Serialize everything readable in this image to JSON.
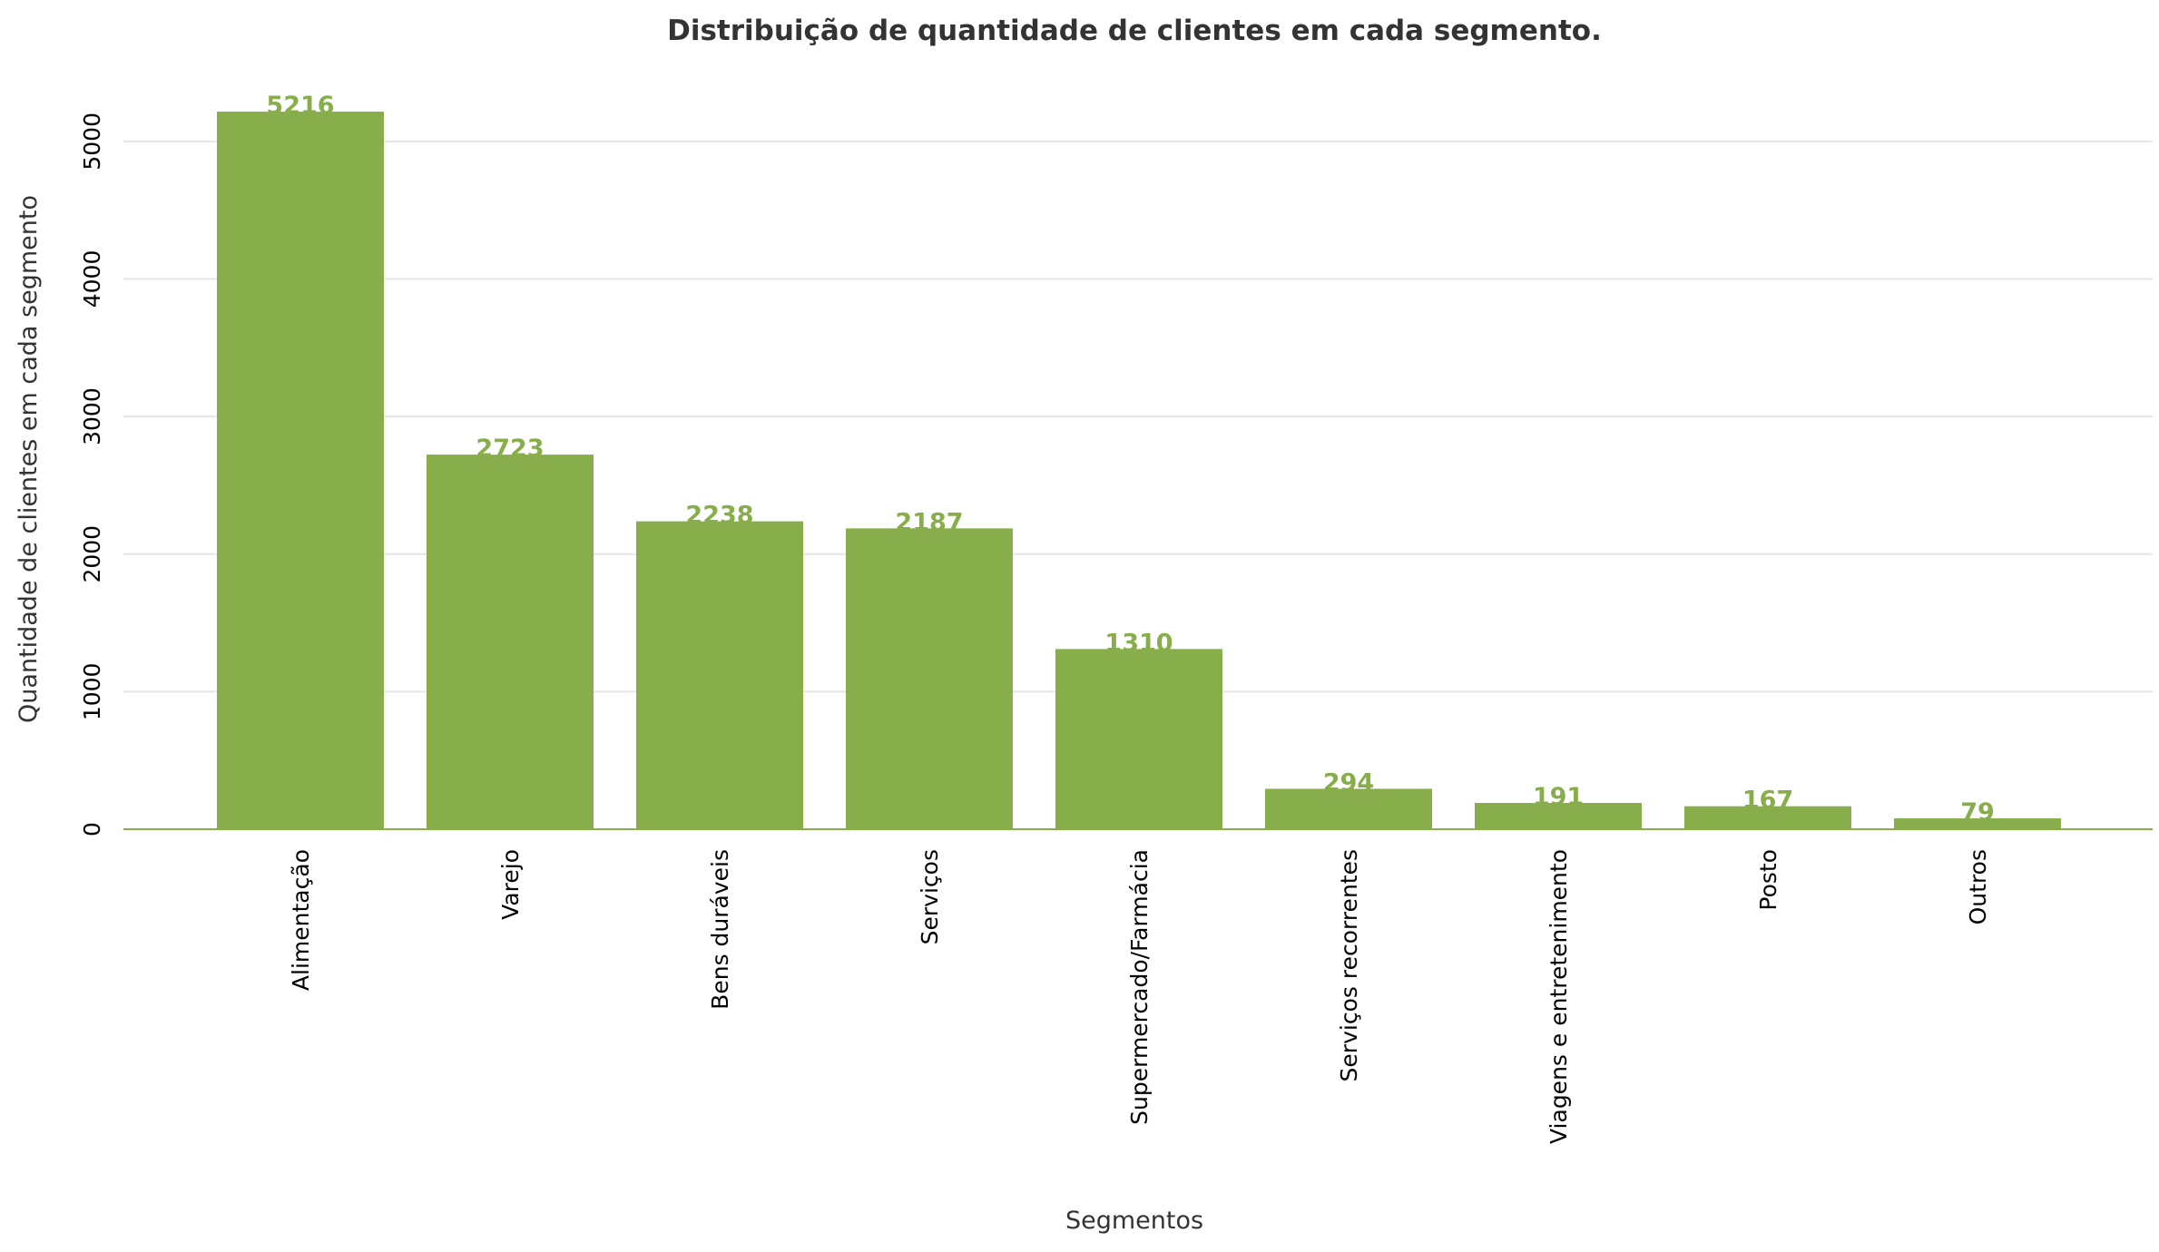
{
  "chart_data": {
    "type": "bar",
    "title": "Distribuição de quantidade de clientes em cada segmento.",
    "xlabel": "Segmentos",
    "ylabel": "Quantidade de clientes em cada segmento",
    "categories": [
      "Alimentação",
      "Varejo",
      "Bens duráveis",
      "Serviços",
      "Supermercado/Farmácia",
      "Serviços recorrentes",
      "Viagens e entretenimento",
      "Posto",
      "Outros"
    ],
    "values": [
      5216,
      2723,
      2238,
      2187,
      1310,
      294,
      191,
      167,
      79
    ],
    "ylim": [
      0,
      5500
    ],
    "yticks": [
      0,
      1000,
      2000,
      3000,
      4000,
      5000
    ],
    "grid": "horizontal",
    "bar_color": "#87ae4b",
    "label_color": "#87ae4b",
    "grid_color": "#e6e6e6"
  }
}
